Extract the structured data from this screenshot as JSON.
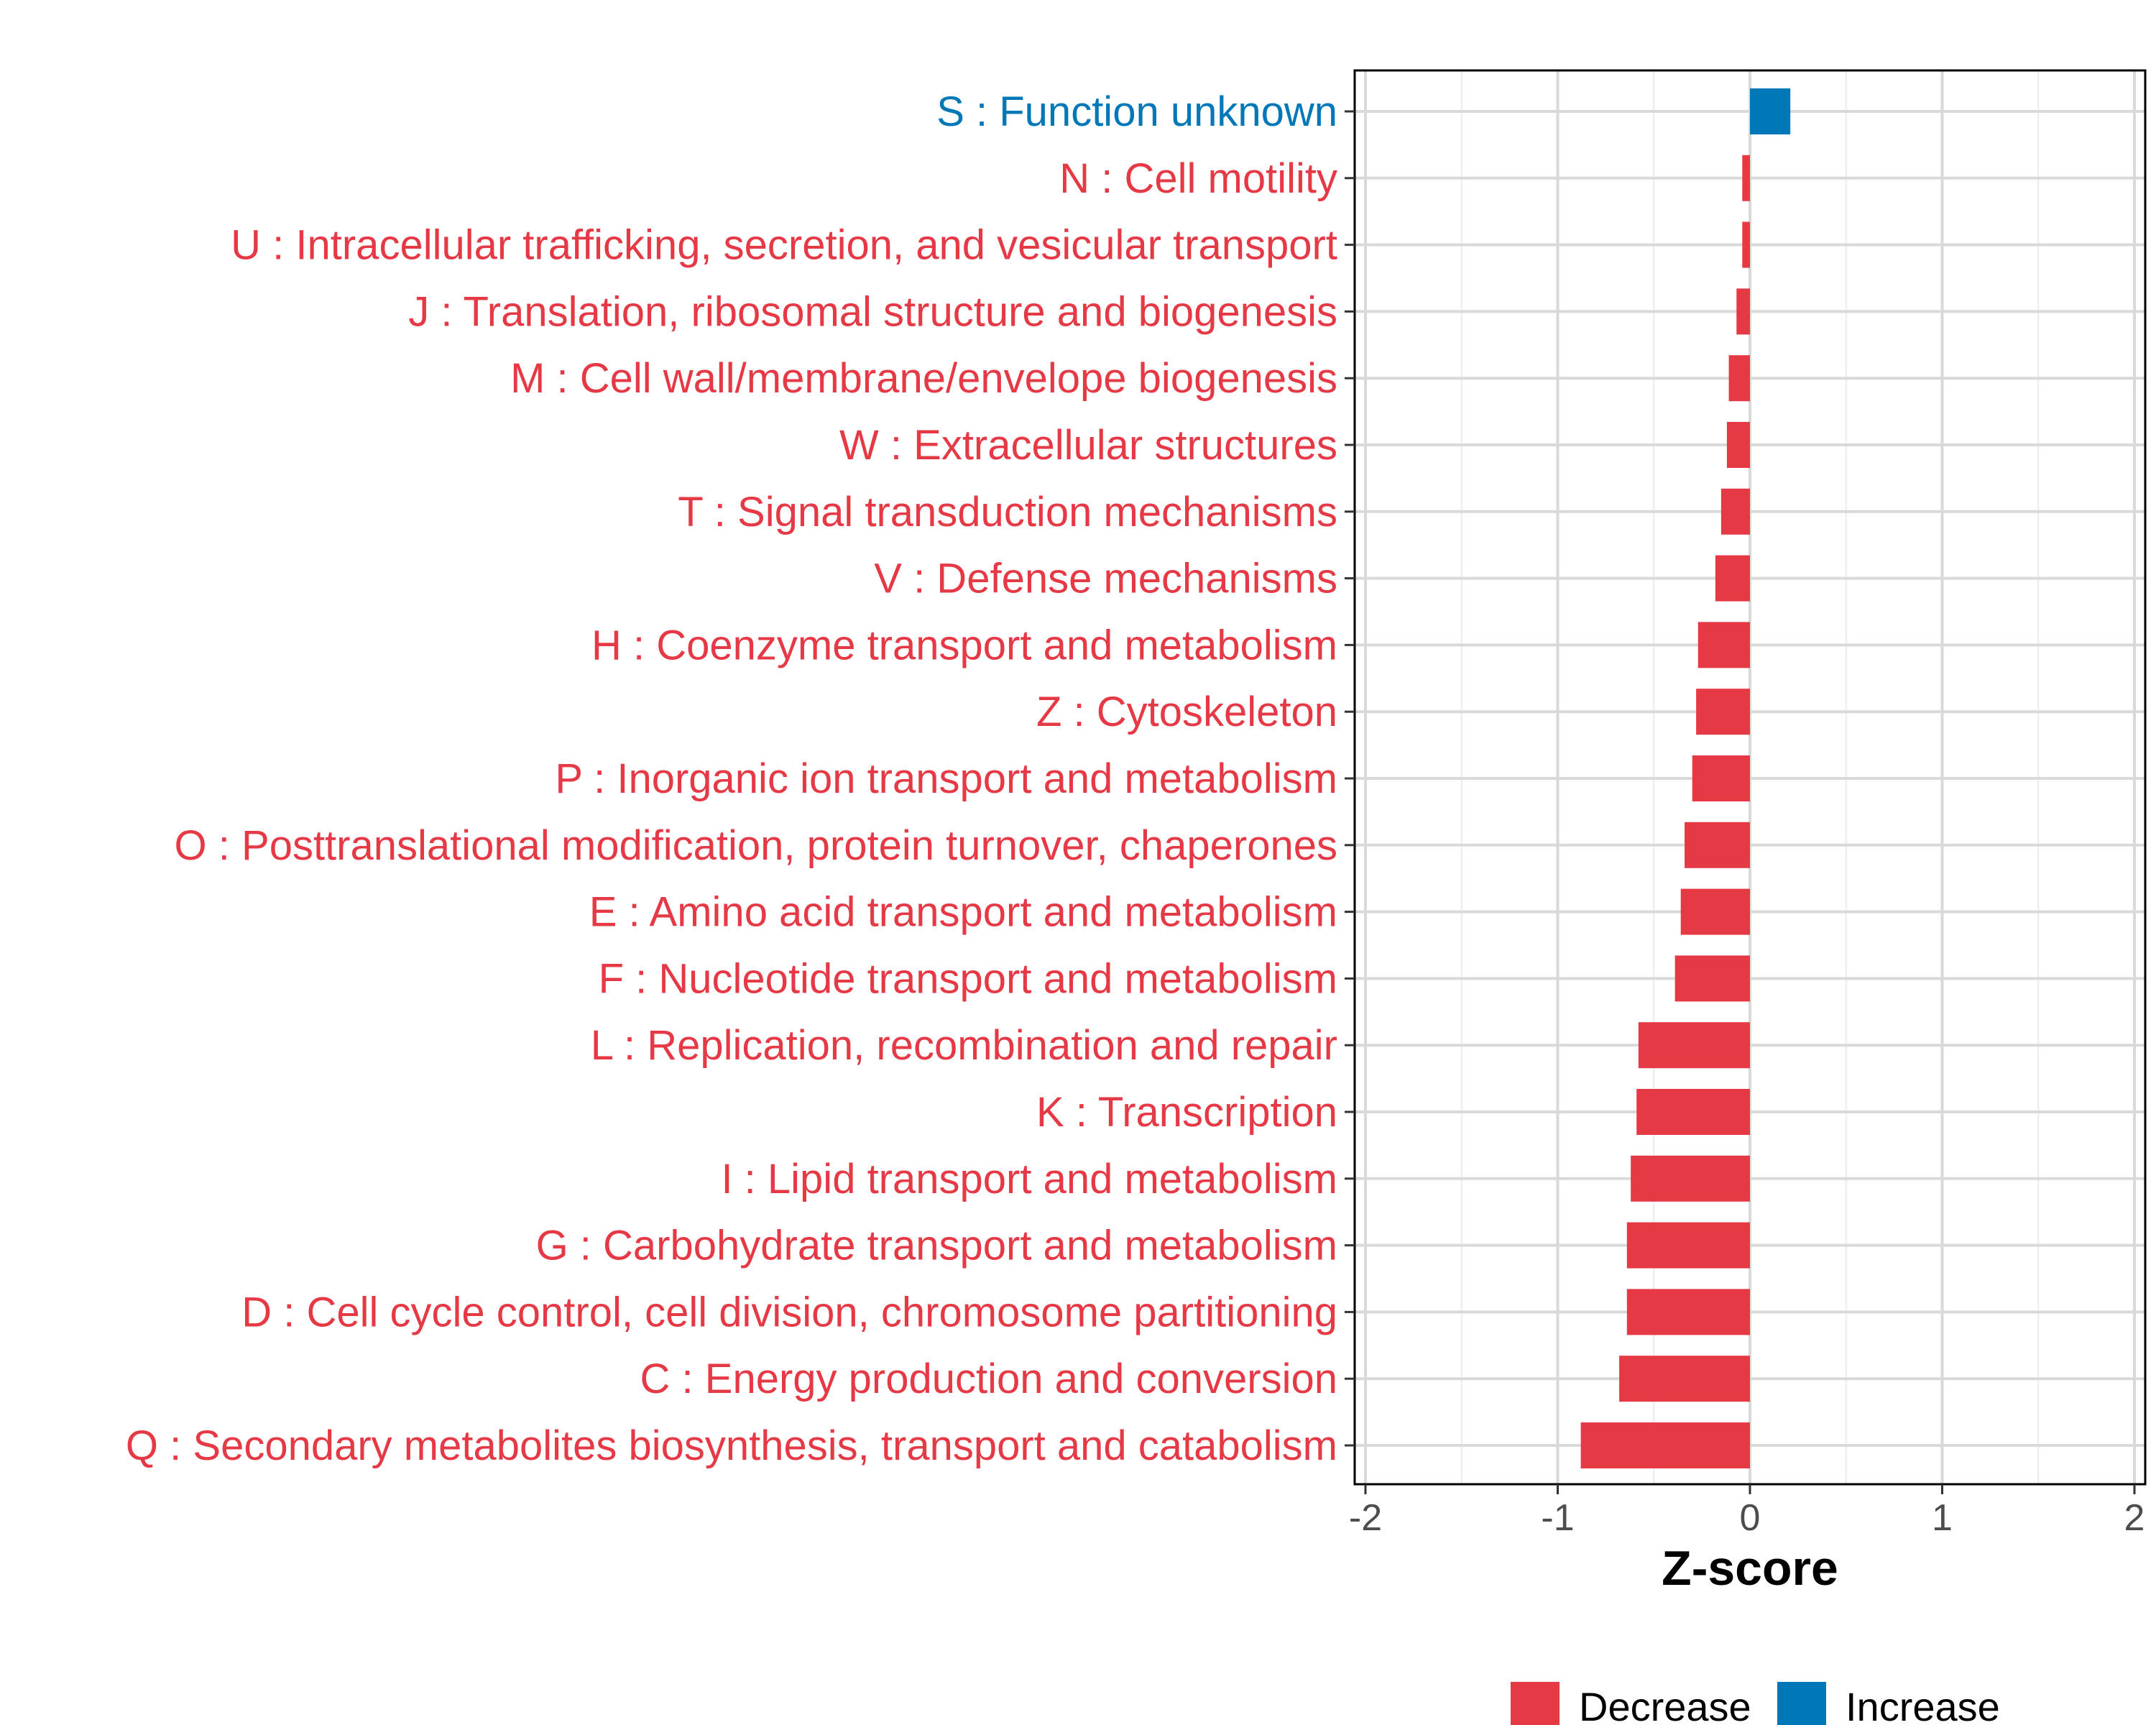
{
  "chart_data": {
    "type": "bar",
    "orientation": "horizontal",
    "xlabel": "Z-score",
    "ylabel": "",
    "xlim": [
      -2,
      2
    ],
    "xticks": [
      "-2",
      "-1",
      "0",
      "1",
      "2"
    ],
    "grid": true,
    "legend_position": "bottom",
    "colors": {
      "Decrease": "#e63946",
      "Increase": "#0077b6"
    },
    "legend": [
      {
        "name": "Decrease",
        "color": "#e63946"
      },
      {
        "name": "Increase",
        "color": "#0077b6"
      }
    ],
    "categories": [
      {
        "label": "S : Function unknown",
        "value": 0.21,
        "group": "Increase"
      },
      {
        "label": "N : Cell motility",
        "value": -0.04,
        "group": "Decrease"
      },
      {
        "label": "U : Intracellular trafficking, secretion, and vesicular transport",
        "value": -0.04,
        "group": "Decrease"
      },
      {
        "label": "J : Translation, ribosomal structure and biogenesis",
        "value": -0.07,
        "group": "Decrease"
      },
      {
        "label": "M : Cell wall/membrane/envelope biogenesis",
        "value": -0.11,
        "group": "Decrease"
      },
      {
        "label": "W : Extracellular structures",
        "value": -0.12,
        "group": "Decrease"
      },
      {
        "label": "T : Signal transduction mechanisms",
        "value": -0.15,
        "group": "Decrease"
      },
      {
        "label": "V : Defense mechanisms",
        "value": -0.18,
        "group": "Decrease"
      },
      {
        "label": "H : Coenzyme transport and metabolism",
        "value": -0.27,
        "group": "Decrease"
      },
      {
        "label": "Z : Cytoskeleton",
        "value": -0.28,
        "group": "Decrease"
      },
      {
        "label": "P : Inorganic ion transport and metabolism",
        "value": -0.3,
        "group": "Decrease"
      },
      {
        "label": "O : Posttranslational modification, protein turnover, chaperones",
        "value": -0.34,
        "group": "Decrease"
      },
      {
        "label": "E : Amino acid transport and metabolism",
        "value": -0.36,
        "group": "Decrease"
      },
      {
        "label": "F : Nucleotide transport and metabolism",
        "value": -0.39,
        "group": "Decrease"
      },
      {
        "label": "L : Replication, recombination and repair",
        "value": -0.58,
        "group": "Decrease"
      },
      {
        "label": "K : Transcription",
        "value": -0.59,
        "group": "Decrease"
      },
      {
        "label": "I : Lipid transport and metabolism",
        "value": -0.62,
        "group": "Decrease"
      },
      {
        "label": "G : Carbohydrate transport and metabolism",
        "value": -0.64,
        "group": "Decrease"
      },
      {
        "label": "D : Cell cycle control, cell division, chromosome partitioning",
        "value": -0.64,
        "group": "Decrease"
      },
      {
        "label": "C : Energy production and conversion",
        "value": -0.68,
        "group": "Decrease"
      },
      {
        "label": "Q : Secondary metabolites biosynthesis, transport and catabolism",
        "value": -0.88,
        "group": "Decrease"
      }
    ]
  }
}
